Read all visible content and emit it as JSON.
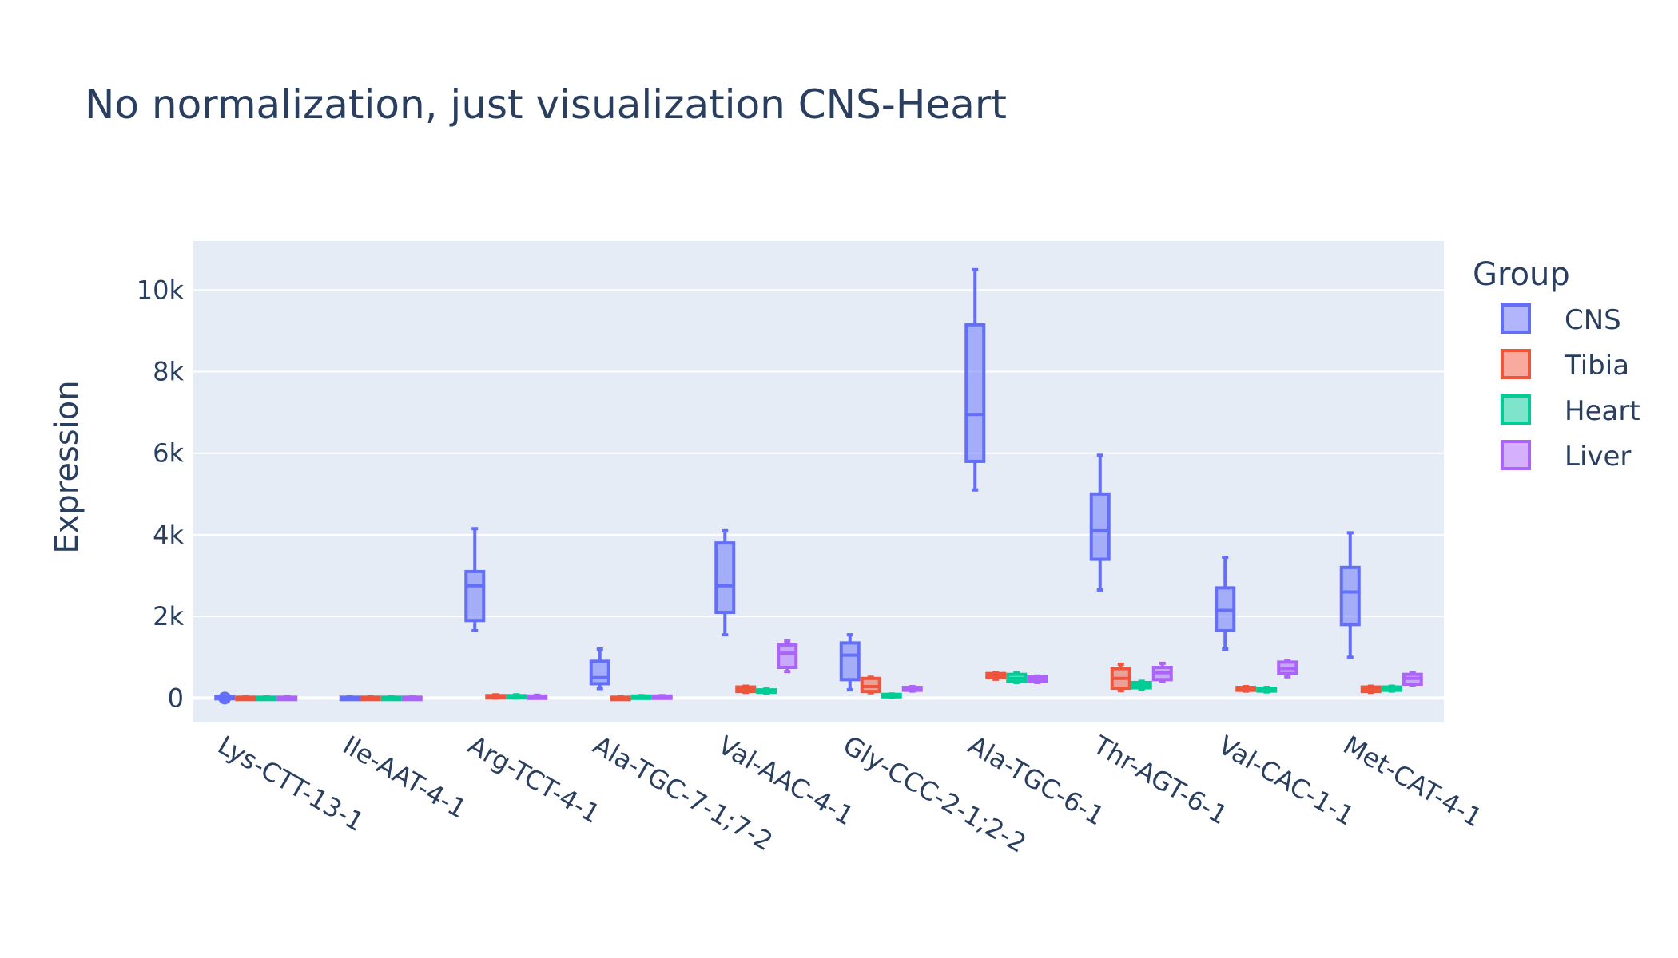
{
  "chart_data": {
    "type": "box",
    "title": "No normalization, just visualization CNS-Heart",
    "ylabel": "Expression",
    "xlabel": "",
    "ylim": [
      -600,
      11200
    ],
    "yticks": [
      0,
      2000,
      4000,
      6000,
      8000,
      10000
    ],
    "ytick_labels": [
      "0",
      "2k",
      "4k",
      "6k",
      "8k",
      "10k"
    ],
    "grid": true,
    "legend_title": "Group",
    "legend_position": "right",
    "categories": [
      "Lys-CTT-13-1",
      "Ile-AAT-4-1",
      "Arg-TCT-4-1",
      "Ala-TGC-7-1;7-2",
      "Val-AAC-4-1",
      "Gly-CCC-2-1;2-2",
      "Ala-TGC-6-1",
      "Thr-AGT-6-1",
      "Val-CAC-1-1",
      "Met-CAT-4-1"
    ],
    "series": [
      {
        "name": "CNS",
        "color": "#636efa",
        "boxes": [
          {
            "min": 0,
            "q1": 0,
            "median": 20,
            "q3": 40,
            "max": 60
          },
          {
            "min": 0,
            "q1": 0,
            "median": 10,
            "q3": 20,
            "max": 30
          },
          {
            "min": 1650,
            "q1": 1900,
            "median": 2750,
            "q3": 3100,
            "max": 4150
          },
          {
            "min": 230,
            "q1": 350,
            "median": 500,
            "q3": 900,
            "max": 1200
          },
          {
            "min": 1550,
            "q1": 2100,
            "median": 2750,
            "q3": 3800,
            "max": 4100
          },
          {
            "min": 200,
            "q1": 450,
            "median": 1050,
            "q3": 1350,
            "max": 1550
          },
          {
            "min": 5100,
            "q1": 5800,
            "median": 6950,
            "q3": 9150,
            "max": 10500
          },
          {
            "min": 2650,
            "q1": 3400,
            "median": 4100,
            "q3": 5000,
            "max": 5950
          },
          {
            "min": 1200,
            "q1": 1650,
            "median": 2150,
            "q3": 2700,
            "max": 3450
          },
          {
            "min": 1000,
            "q1": 1800,
            "median": 2600,
            "q3": 3200,
            "max": 4050
          }
        ]
      },
      {
        "name": "Tibia",
        "color": "#ef553b",
        "boxes": [
          {
            "min": 0,
            "q1": 0,
            "median": 10,
            "q3": 20,
            "max": 30
          },
          {
            "min": 0,
            "q1": 0,
            "median": 10,
            "q3": 20,
            "max": 30
          },
          {
            "min": 0,
            "q1": 10,
            "median": 30,
            "q3": 60,
            "max": 80
          },
          {
            "min": 0,
            "q1": 0,
            "median": 10,
            "q3": 20,
            "max": 30
          },
          {
            "min": 140,
            "q1": 160,
            "median": 230,
            "q3": 270,
            "max": 290
          },
          {
            "min": 130,
            "q1": 160,
            "median": 280,
            "q3": 480,
            "max": 510
          },
          {
            "min": 460,
            "q1": 500,
            "median": 550,
            "q3": 600,
            "max": 620
          },
          {
            "min": 180,
            "q1": 240,
            "median": 480,
            "q3": 720,
            "max": 830
          },
          {
            "min": 170,
            "q1": 190,
            "median": 230,
            "q3": 260,
            "max": 280
          },
          {
            "min": 140,
            "q1": 160,
            "median": 220,
            "q3": 270,
            "max": 290
          }
        ]
      },
      {
        "name": "Heart",
        "color": "#00cc96",
        "boxes": [
          {
            "min": 0,
            "q1": 0,
            "median": 10,
            "q3": 20,
            "max": 30
          },
          {
            "min": 0,
            "q1": 0,
            "median": 10,
            "q3": 20,
            "max": 30
          },
          {
            "min": 0,
            "q1": 10,
            "median": 40,
            "q3": 60,
            "max": 80
          },
          {
            "min": 0,
            "q1": 10,
            "median": 30,
            "q3": 50,
            "max": 60
          },
          {
            "min": 120,
            "q1": 140,
            "median": 170,
            "q3": 200,
            "max": 220
          },
          {
            "min": 20,
            "q1": 30,
            "median": 60,
            "q3": 90,
            "max": 100
          },
          {
            "min": 380,
            "q1": 400,
            "median": 480,
            "q3": 580,
            "max": 620
          },
          {
            "min": 220,
            "q1": 250,
            "median": 320,
            "q3": 380,
            "max": 410
          },
          {
            "min": 150,
            "q1": 170,
            "median": 200,
            "q3": 240,
            "max": 260
          },
          {
            "min": 170,
            "q1": 190,
            "median": 230,
            "q3": 270,
            "max": 290
          }
        ]
      },
      {
        "name": "Liver",
        "color": "#ab63fa",
        "boxes": [
          {
            "min": 0,
            "q1": 0,
            "median": 10,
            "q3": 20,
            "max": 30
          },
          {
            "min": 0,
            "q1": 0,
            "median": 10,
            "q3": 20,
            "max": 30
          },
          {
            "min": 0,
            "q1": 10,
            "median": 30,
            "q3": 50,
            "max": 70
          },
          {
            "min": 0,
            "q1": 10,
            "median": 30,
            "q3": 50,
            "max": 60
          },
          {
            "min": 650,
            "q1": 750,
            "median": 1100,
            "q3": 1300,
            "max": 1400
          },
          {
            "min": 170,
            "q1": 190,
            "median": 220,
            "q3": 260,
            "max": 280
          },
          {
            "min": 380,
            "q1": 400,
            "median": 470,
            "q3": 520,
            "max": 540
          },
          {
            "min": 400,
            "q1": 450,
            "median": 620,
            "q3": 750,
            "max": 850
          },
          {
            "min": 520,
            "q1": 600,
            "median": 720,
            "q3": 880,
            "max": 920
          },
          {
            "min": 320,
            "q1": 340,
            "median": 480,
            "q3": 580,
            "max": 620
          }
        ]
      }
    ]
  }
}
